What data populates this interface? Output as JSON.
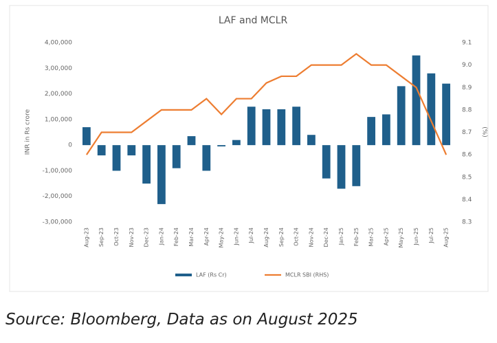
{
  "chart_data": {
    "type": "bar_line",
    "title": "LAF and MCLR",
    "caption": "Source: Bloomberg, Data as on August 2025",
    "ylabel": "INR in Rs crore",
    "y2label": "(%)",
    "categories": [
      "Aug-23",
      "Sep-23",
      "Oct-23",
      "Nov-23",
      "Dec-23",
      "Jan-24",
      "Feb-24",
      "Mar-24",
      "Apr-24",
      "May-24",
      "Jun-24",
      "Jul-24",
      "Aug-24",
      "Sep-24",
      "Oct-24",
      "Nov-24",
      "Dec-24",
      "Jan-25",
      "Feb-25",
      "Mar-25",
      "Apr-25",
      "May-25",
      "Jun-25",
      "Jul-25",
      "Aug-25"
    ],
    "series": [
      {
        "name": "LAF (Rs Cr)",
        "color": "#1f5f8b",
        "kind": "bar",
        "values": [
          70000,
          -40000,
          -100000,
          -40000,
          -150000,
          -230000,
          -90000,
          35000,
          -100000,
          -5000,
          20000,
          150000,
          140000,
          140000,
          150000,
          40000,
          -130000,
          -170000,
          -160000,
          110000,
          120000,
          230000,
          350000,
          280000,
          240000
        ]
      },
      {
        "name": "MCLR SBI (RHS)",
        "color": "#ed7d31",
        "kind": "line",
        "axis": "y2",
        "values": [
          8.6,
          8.7,
          8.7,
          8.7,
          8.75,
          8.8,
          8.8,
          8.8,
          8.85,
          8.78,
          8.85,
          8.85,
          8.92,
          8.95,
          8.95,
          9.0,
          9.0,
          9.0,
          9.05,
          9.0,
          9.0,
          8.95,
          8.9,
          8.75,
          8.6
        ]
      }
    ],
    "ylim": [
      -300000,
      400000
    ],
    "yticks": [
      {
        "value": 400000,
        "label": "4,00,000"
      },
      {
        "value": 300000,
        "label": "3,00,000"
      },
      {
        "value": 200000,
        "label": "2,00,000"
      },
      {
        "value": 100000,
        "label": "1,00,000"
      },
      0,
      {
        "value": -100000,
        "label": "-1,00,000"
      },
      {
        "value": -200000,
        "label": "-2,00,000"
      },
      {
        "value": -300000,
        "label": "-3,00,000"
      }
    ],
    "y2lim": [
      8.3,
      9.1
    ],
    "y2ticks": [
      9.1,
      {
        "value": 9,
        "label": "9.0"
      },
      8.9,
      8.8,
      8.7,
      8.6,
      8.5,
      8.4,
      8.3
    ],
    "grid": false,
    "legend": "bottom"
  }
}
